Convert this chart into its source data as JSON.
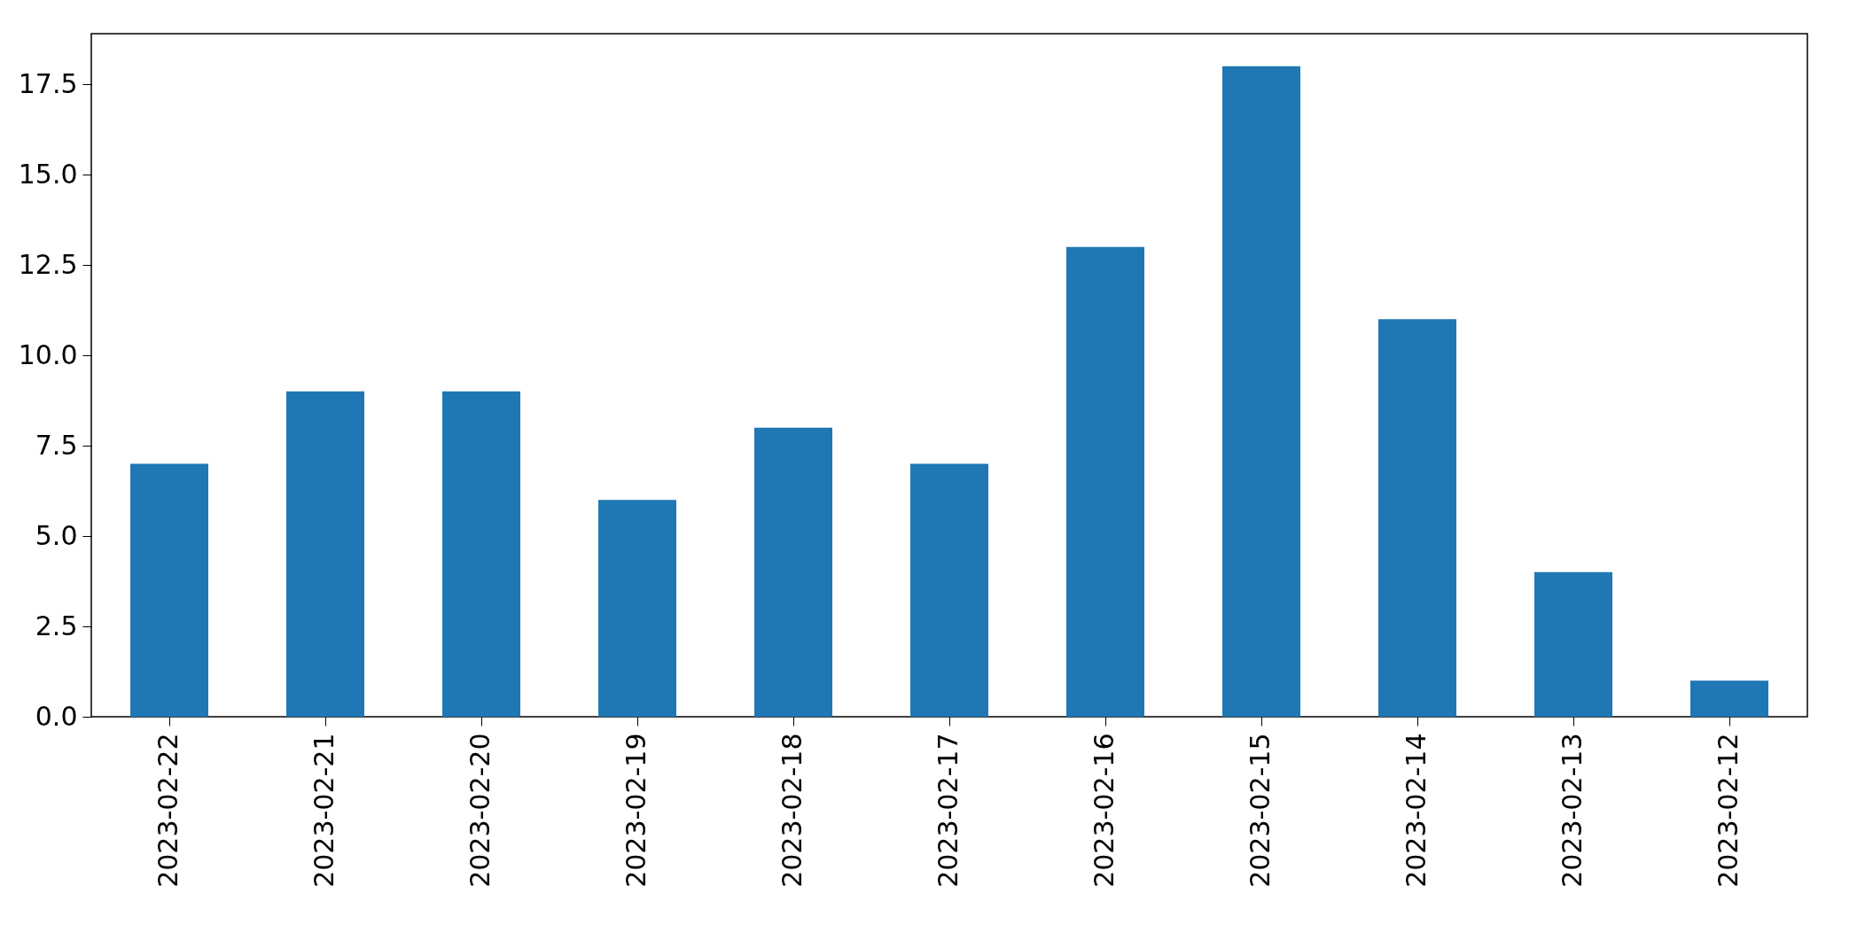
{
  "chart_data": {
    "type": "bar",
    "categories": [
      "2023-02-22",
      "2023-02-21",
      "2023-02-20",
      "2023-02-19",
      "2023-02-18",
      "2023-02-17",
      "2023-02-16",
      "2023-02-15",
      "2023-02-14",
      "2023-02-13",
      "2023-02-12"
    ],
    "values": [
      7,
      9,
      9,
      6,
      8,
      7,
      13,
      18,
      11,
      4,
      1
    ],
    "color": "#1f77b4",
    "ylim": [
      0,
      18.9
    ],
    "yticks": [
      {
        "value": 0,
        "label": "0.0"
      },
      2.5,
      {
        "value": 5,
        "label": "5.0"
      },
      7.5,
      {
        "value": 10,
        "label": "10.0"
      },
      12.5,
      {
        "value": 15,
        "label": "15.0"
      },
      17.5
    ],
    "grid": false
  }
}
